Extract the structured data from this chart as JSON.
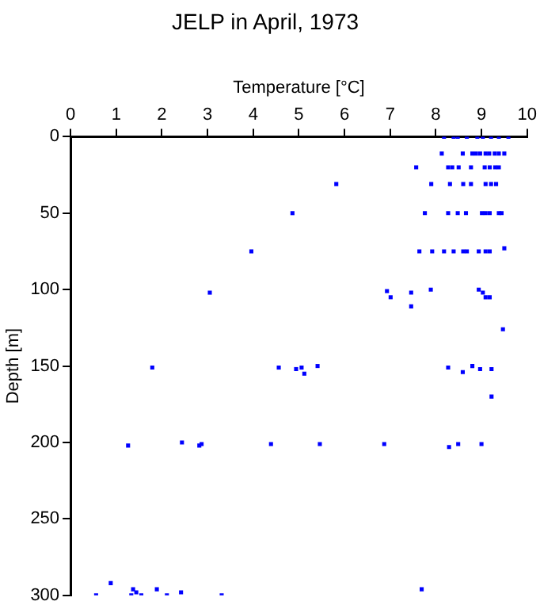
{
  "chart_data": {
    "type": "scatter",
    "title": "JELP in April, 1973",
    "xlabel": "Temperature [°C]",
    "ylabel": "Depth [m]",
    "xlim": [
      0,
      10
    ],
    "xticks": [
      0,
      1,
      2,
      3,
      4,
      5,
      6,
      7,
      8,
      9,
      10
    ],
    "ylim": [
      300,
      0
    ],
    "yticks": [
      0,
      50,
      100,
      150,
      200,
      250,
      300
    ],
    "marker": "square",
    "legend": false,
    "grid": false,
    "series": [
      {
        "color": "#0000ff",
        "x": [
          8.18,
          8.39,
          8.48,
          8.68,
          8.91,
          9.03,
          9.21,
          9.38,
          9.59,
          8.13,
          8.59,
          8.8,
          8.88,
          8.97,
          9.09,
          9.17,
          9.29,
          9.38,
          9.5,
          7.57,
          8.27,
          8.36,
          8.5,
          8.77,
          9.07,
          9.18,
          9.3,
          9.38,
          5.82,
          7.9,
          8.31,
          8.6,
          8.77,
          9.09,
          9.21,
          9.32,
          4.86,
          7.76,
          8.27,
          8.48,
          8.66,
          9.01,
          9.09,
          9.18,
          9.38,
          9.44,
          3.96,
          7.64,
          7.92,
          8.18,
          8.39,
          8.6,
          8.68,
          8.94,
          9.09,
          9.18,
          9.5,
          3.05,
          6.93,
          7.01,
          7.46,
          7.46,
          7.89,
          8.94,
          9.03,
          9.09,
          9.18,
          9.47,
          1.79,
          4.56,
          4.94,
          5.06,
          5.12,
          5.41,
          8.27,
          8.59,
          8.8,
          8.97,
          9.22,
          9.22,
          1.26,
          2.44,
          2.82,
          2.87,
          4.39,
          5.46,
          6.87,
          8.29,
          8.49,
          9.0,
          0.56,
          0.88,
          1.33,
          1.37,
          1.44,
          1.55,
          1.89,
          2.11,
          2.42,
          3.31,
          7.69
        ],
        "values": [
          0,
          0,
          0,
          0,
          0,
          0,
          0,
          0,
          0,
          11,
          11,
          11,
          11,
          11,
          11,
          11,
          11,
          11,
          11,
          20,
          20,
          20,
          20,
          20,
          20,
          20,
          20,
          20,
          31,
          31,
          31,
          31,
          31,
          31,
          31,
          31,
          50,
          50,
          50,
          50,
          50,
          50,
          50,
          50,
          50,
          50,
          75,
          75,
          75,
          75,
          75,
          75,
          75,
          75,
          75,
          75,
          73,
          102,
          101,
          105,
          102,
          111,
          100,
          100,
          102,
          105,
          105,
          126,
          151,
          151,
          152,
          151,
          155,
          150,
          151,
          154,
          150,
          152,
          152,
          170,
          202,
          200,
          202,
          201,
          201,
          201,
          201,
          203,
          201,
          201,
          300,
          292,
          300,
          296,
          298,
          300,
          296,
          300,
          298,
          300,
          296
        ]
      }
    ]
  }
}
